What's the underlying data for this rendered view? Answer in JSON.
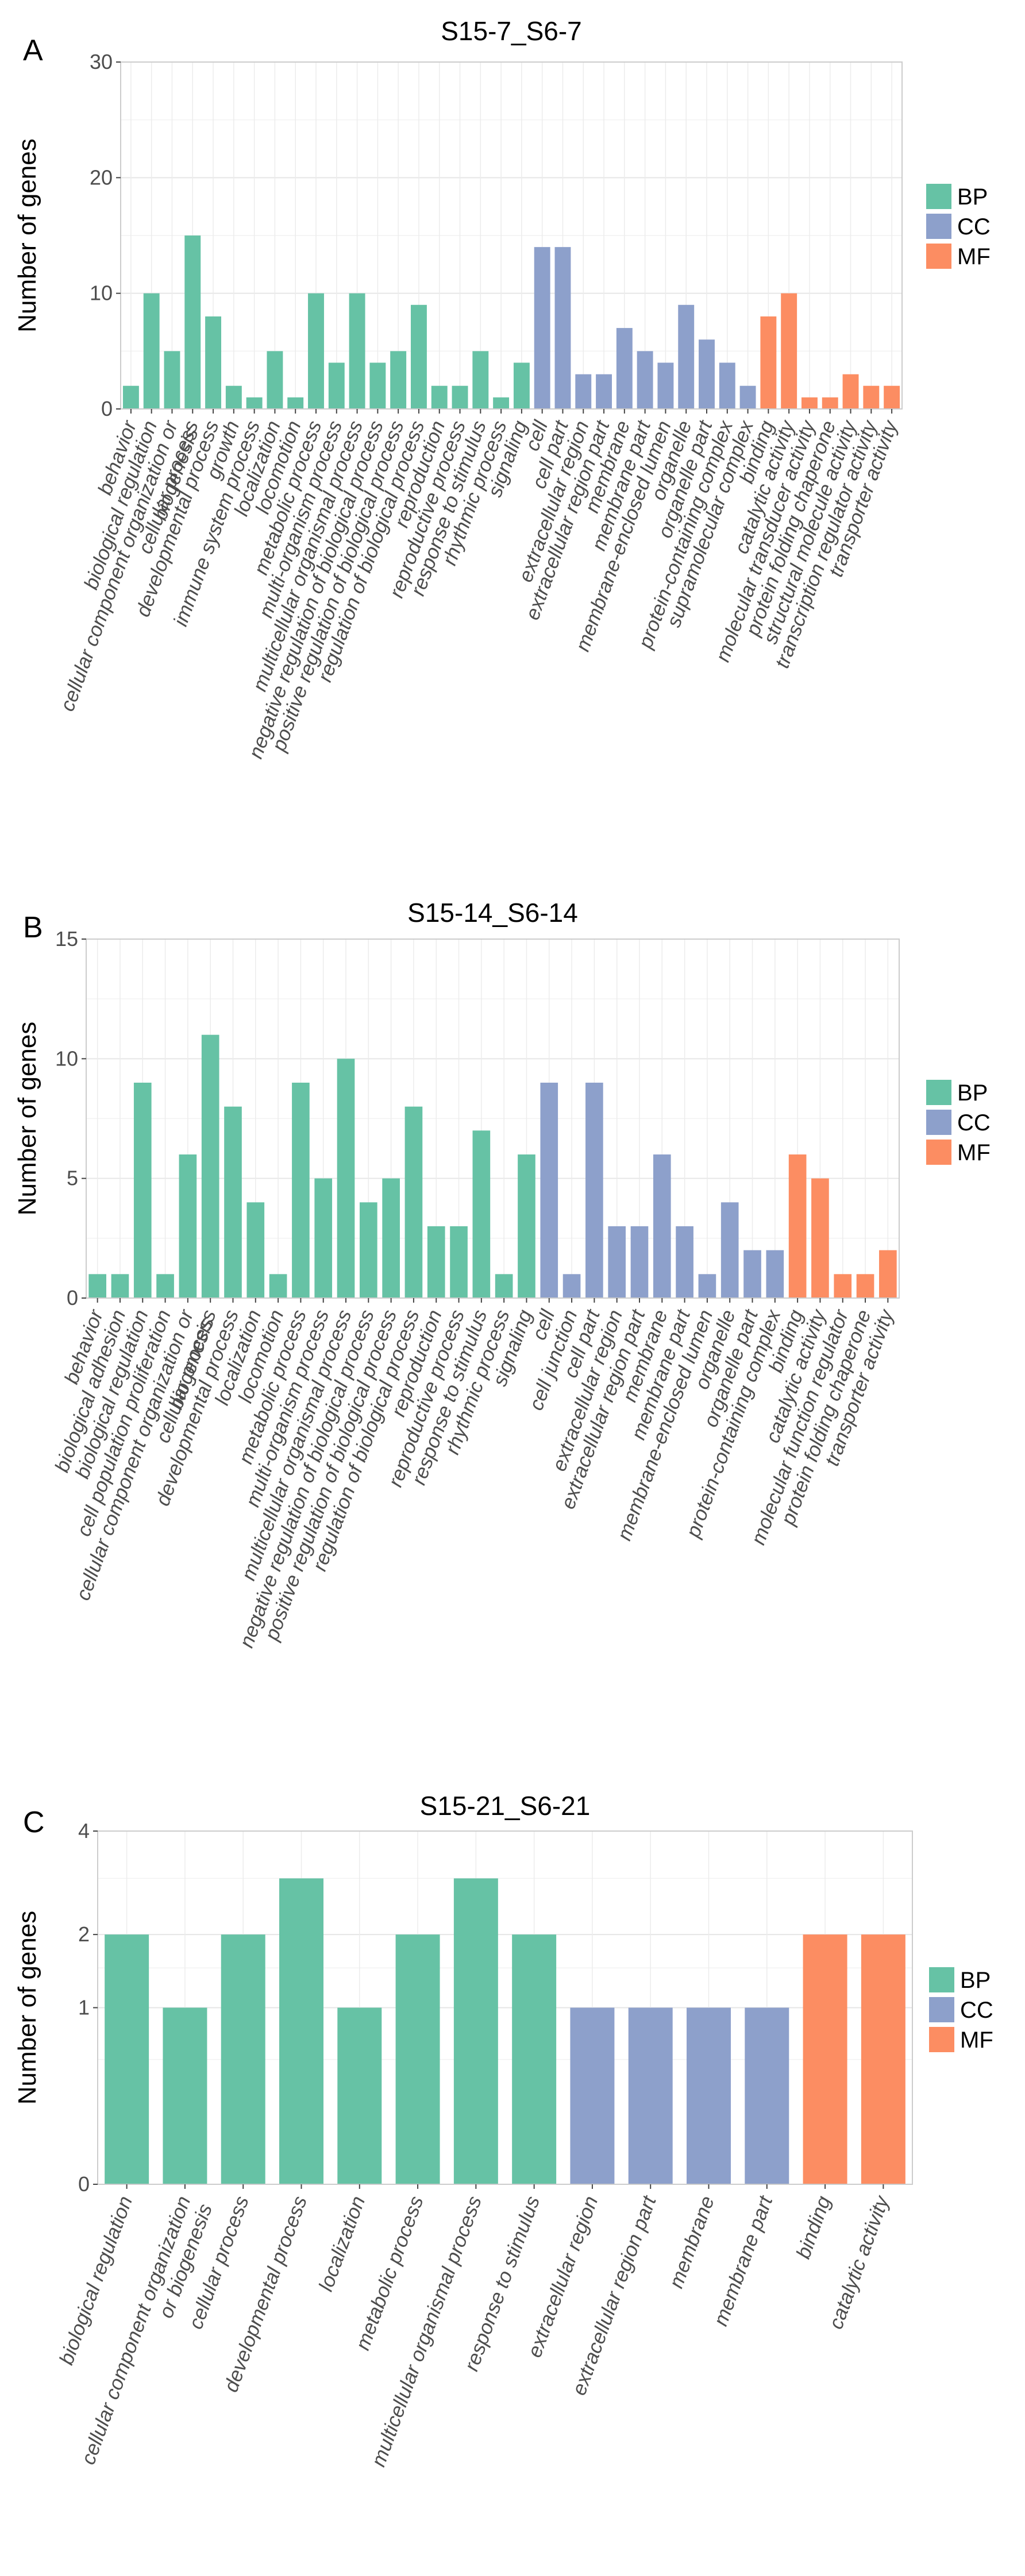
{
  "colors": {
    "BP": "#66c2a5",
    "CC": "#8da0cb",
    "MF": "#fc8d62"
  },
  "chart_data": [
    {
      "type": "bar",
      "panel": "A",
      "title": "S15-7_S6-7",
      "ylabel": "Number of genes",
      "ylim": [
        0,
        30
      ],
      "yticks": [
        0,
        10,
        20,
        30
      ],
      "legend": [
        "BP",
        "CC",
        "MF"
      ],
      "legend_position": "right",
      "grid": true,
      "categories": [
        "behavior",
        "biological regulation",
        "cellular component organization or biogenesis",
        "cellular process",
        "developmental process",
        "growth",
        "immune system process",
        "localization",
        "locomotion",
        "metabolic process",
        "multi-organism process",
        "multicellular organismal process",
        "negative regulation of biological process",
        "positive regulation of biological process",
        "regulation of biological process",
        "reproduction",
        "reproductive process",
        "response to stimulus",
        "rhythmic process",
        "signaling",
        "cell",
        "cell part",
        "extracellular region",
        "extracellular region part",
        "membrane",
        "membrane part",
        "membrane-enclosed lumen",
        "organelle",
        "organelle part",
        "protein-containing complex",
        "supramolecular complex",
        "binding",
        "catalytic activity",
        "molecular transducer activity",
        "protein folding chaperone",
        "structural molecule activity",
        "transcription regulator activity",
        "transporter activity"
      ],
      "tick_labels": [
        "behavior",
        "biological regulation",
        "cellular component organization or\nbiogenesis",
        "cellular process",
        "developmental process",
        "growth",
        "immune system process",
        "localization",
        "locomotion",
        "metabolic process",
        "multi-organism process",
        "multicellular organismal process",
        "negative regulation of biological process",
        "positive regulation of biological process",
        "regulation of biological process",
        "reproduction",
        "reproductive process",
        "response to stimulus",
        "rhythmic process",
        "signaling",
        "cell",
        "cell part",
        "extracellular region",
        "extracellular region part",
        "membrane",
        "membrane part",
        "membrane-enclosed lumen",
        "organelle",
        "organelle part",
        "protein-containing complex",
        "supramolecular complex",
        "binding",
        "catalytic activity",
        "molecular transducer activity",
        "protein folding chaperone",
        "structural molecule activity",
        "transcription regulator activity",
        "transporter activity"
      ],
      "values": [
        2,
        10,
        5,
        15,
        8,
        2,
        1,
        5,
        1,
        10,
        4,
        10,
        4,
        5,
        9,
        2,
        2,
        5,
        1,
        4,
        14,
        14,
        3,
        3,
        7,
        5,
        4,
        9,
        6,
        4,
        2,
        8,
        10,
        1,
        1,
        3,
        2,
        2
      ],
      "groups": [
        "BP",
        "BP",
        "BP",
        "BP",
        "BP",
        "BP",
        "BP",
        "BP",
        "BP",
        "BP",
        "BP",
        "BP",
        "BP",
        "BP",
        "BP",
        "BP",
        "BP",
        "BP",
        "BP",
        "BP",
        "CC",
        "CC",
        "CC",
        "CC",
        "CC",
        "CC",
        "CC",
        "CC",
        "CC",
        "CC",
        "CC",
        "MF",
        "MF",
        "MF",
        "MF",
        "MF",
        "MF",
        "MF"
      ]
    },
    {
      "type": "bar",
      "panel": "B",
      "title": "S15-14_S6-14",
      "ylabel": "Number of genes",
      "ylim": [
        0,
        15
      ],
      "yticks": [
        0,
        5,
        10,
        15
      ],
      "legend": [
        "BP",
        "CC",
        "MF"
      ],
      "legend_position": "right",
      "grid": true,
      "categories": [
        "behavior",
        "biological adhesion",
        "biological regulation",
        "cell population proliferation",
        "cellular component organization or biogenesis",
        "cellular process",
        "developmental process",
        "localization",
        "locomotion",
        "metabolic process",
        "multi-organism process",
        "multicellular organismal process",
        "negative regulation of biological process",
        "positive regulation of biological process",
        "regulation of biological process",
        "reproduction",
        "reproductive process",
        "response to stimulus",
        "rhythmic process",
        "signaling",
        "cell",
        "cell junction",
        "cell part",
        "extracellular region",
        "extracellular region part",
        "membrane",
        "membrane part",
        "membrane-enclosed lumen",
        "organelle",
        "organelle part",
        "protein-containing complex",
        "binding",
        "catalytic activity",
        "molecular function regulator",
        "protein folding chaperone",
        "transporter activity"
      ],
      "tick_labels": [
        "behavior",
        "biological adhesion",
        "biological regulation",
        "cell population proliferation",
        "cellular component organization or\nbiogenesis",
        "cellular process",
        "developmental process",
        "localization",
        "locomotion",
        "metabolic process",
        "multi-organism process",
        "multicellular organismal process",
        "negative regulation of biological process",
        "positive regulation of biological process",
        "regulation of biological process",
        "reproduction",
        "reproductive process",
        "response to stimulus",
        "rhythmic process",
        "signaling",
        "cell",
        "cell junction",
        "cell part",
        "extracellular region",
        "extracellular region part",
        "membrane",
        "membrane part",
        "membrane-enclosed lumen",
        "organelle",
        "organelle part",
        "protein-containing complex",
        "binding",
        "catalytic activity",
        "molecular function regulator",
        "protein folding chaperone",
        "transporter activity"
      ],
      "values": [
        1,
        1,
        9,
        1,
        6,
        11,
        8,
        4,
        1,
        9,
        5,
        10,
        4,
        5,
        8,
        3,
        3,
        7,
        1,
        6,
        9,
        1,
        9,
        3,
        3,
        6,
        3,
        1,
        4,
        2,
        2,
        6,
        5,
        1,
        1,
        2
      ],
      "groups": [
        "BP",
        "BP",
        "BP",
        "BP",
        "BP",
        "BP",
        "BP",
        "BP",
        "BP",
        "BP",
        "BP",
        "BP",
        "BP",
        "BP",
        "BP",
        "BP",
        "BP",
        "BP",
        "BP",
        "BP",
        "CC",
        "CC",
        "CC",
        "CC",
        "CC",
        "CC",
        "CC",
        "CC",
        "CC",
        "CC",
        "CC",
        "MF",
        "MF",
        "MF",
        "MF",
        "MF"
      ]
    },
    {
      "type": "bar",
      "panel": "C",
      "title": "S15-21_S6-21",
      "ylabel": "Number of genes",
      "ylim": [
        0,
        4
      ],
      "yticks": [
        0,
        1,
        2,
        4
      ],
      "y_scale": "sqrt",
      "legend": [
        "BP",
        "CC",
        "MF"
      ],
      "legend_position": "right",
      "grid": true,
      "categories": [
        "biological regulation",
        "cellular component organization or biogenesis",
        "cellular process",
        "developmental process",
        "localization",
        "metabolic process",
        "multicellular organismal process",
        "response to stimulus",
        "extracellular region",
        "extracellular region part",
        "membrane",
        "membrane part",
        "binding",
        "catalytic activity"
      ],
      "tick_labels": [
        "biological regulation",
        "cellular component organization\nor biogenesis",
        "cellular process",
        "developmental process",
        "localization",
        "metabolic process",
        "multicellular organismal process",
        "response to stimulus",
        "extracellular region",
        "extracellular region part",
        "membrane",
        "membrane part",
        "binding",
        "catalytic activity"
      ],
      "values": [
        2,
        1,
        2,
        3,
        1,
        2,
        3,
        2,
        1,
        1,
        1,
        1,
        2,
        2
      ],
      "groups": [
        "BP",
        "BP",
        "BP",
        "BP",
        "BP",
        "BP",
        "BP",
        "BP",
        "CC",
        "CC",
        "CC",
        "CC",
        "MF",
        "MF"
      ]
    }
  ]
}
